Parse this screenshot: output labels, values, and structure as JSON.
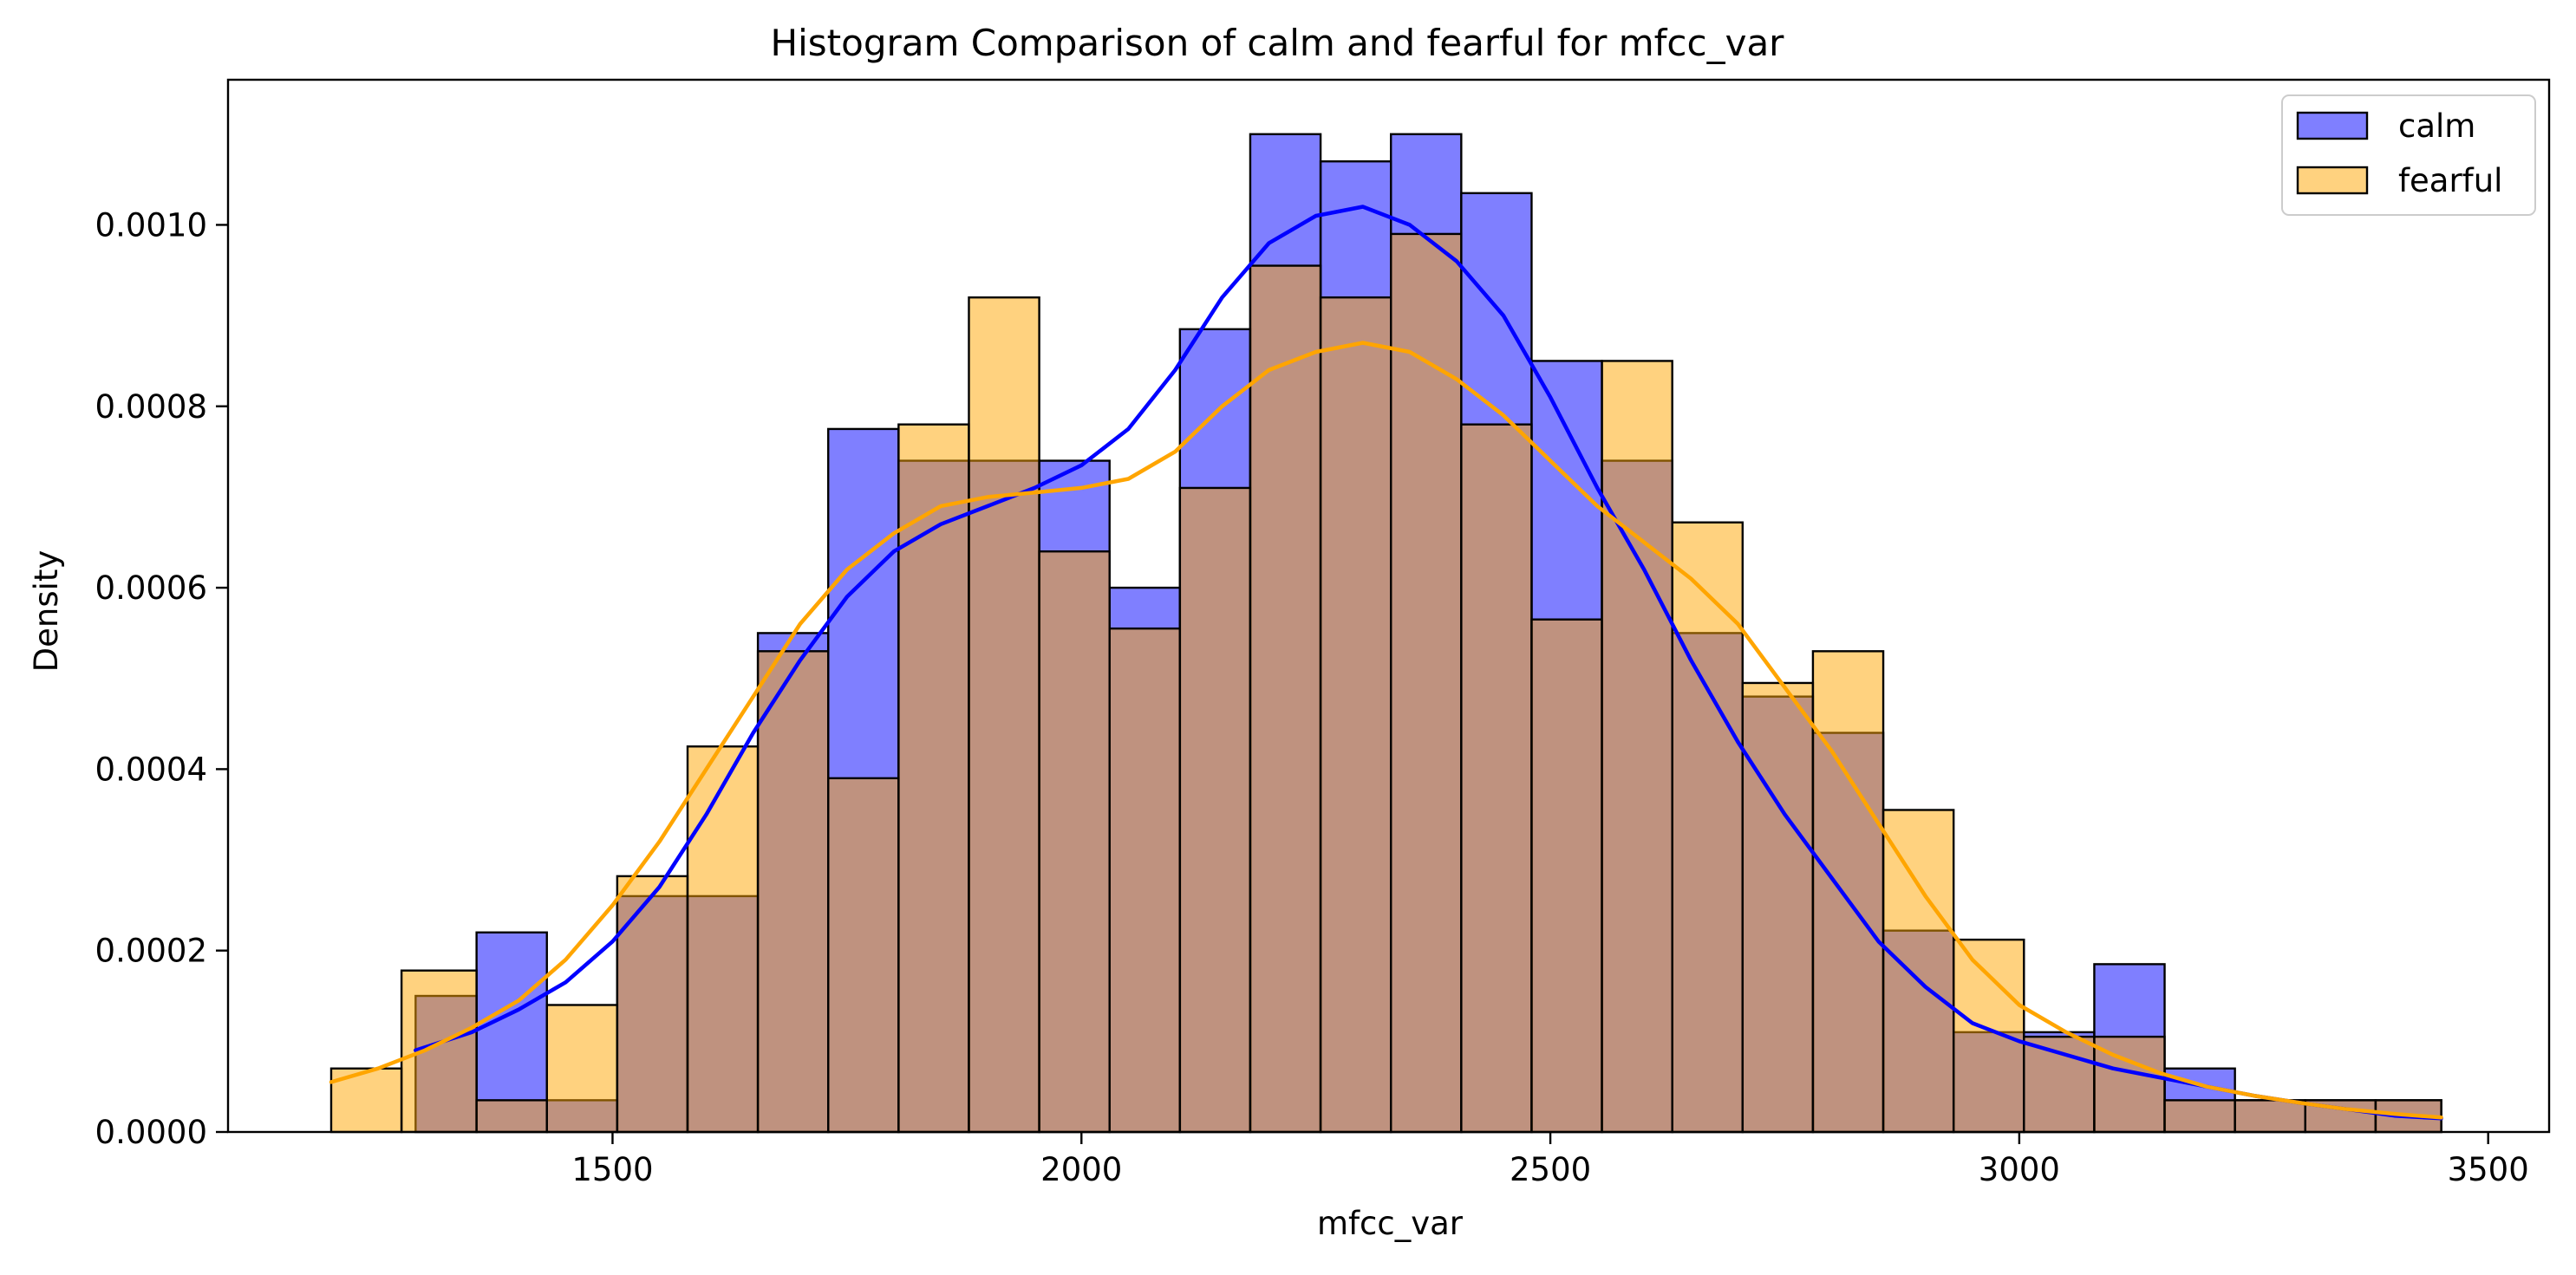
{
  "chart_data": {
    "type": "histogram",
    "title": "Histogram Comparison of calm and fearful for mfcc_var",
    "xlabel": "mfcc_var",
    "ylabel": "Density",
    "xlim": [
      1090,
      3565
    ],
    "ylim": [
      0,
      0.00116
    ],
    "xticks": [
      1500,
      2000,
      2500,
      3000,
      3500
    ],
    "yticks": [
      0.0,
      0.0002,
      0.0004,
      0.0006,
      0.0008,
      0.001
    ],
    "ytick_labels": [
      "0.0000",
      "0.0002",
      "0.0004",
      "0.0006",
      "0.0008",
      "0.0010"
    ],
    "bin_width": 75,
    "grid": false,
    "legend_position": "top-right",
    "series": [
      {
        "name": "calm",
        "fill": "#0000FF",
        "fill_opacity": 0.5,
        "kde_color": "#0000FF",
        "bin_starts": [
          1290,
          1355,
          1430,
          1505,
          1580,
          1655,
          1730,
          1805,
          1880,
          1955,
          2030,
          2105,
          2180,
          2255,
          2330,
          2405,
          2480,
          2555,
          2630,
          2705,
          2780,
          2855,
          2930,
          3005,
          3080,
          3155,
          3230,
          3305,
          3380
        ],
        "bin_ends": [
          1355,
          1430,
          1505,
          1580,
          1655,
          1730,
          1805,
          1880,
          1955,
          2030,
          2105,
          2180,
          2255,
          2330,
          2405,
          2480,
          2555,
          2630,
          2705,
          2780,
          2855,
          2930,
          3005,
          3080,
          3155,
          3230,
          3305,
          3380,
          3450
        ],
        "values": [
          0.00015,
          0.00022,
          3.5e-05,
          0.00026,
          0.00026,
          0.00055,
          0.000775,
          0.00074,
          0.00074,
          0.00074,
          0.0006,
          0.000885,
          0.0011,
          0.00107,
          0.0011,
          0.001035,
          0.00085,
          0.00074,
          0.00055,
          0.00048,
          0.00044,
          0.000222,
          0.00011,
          0.00011,
          0.000185,
          7e-05,
          3.5e-05,
          3.5e-05,
          3.5e-05
        ],
        "kde_x": [
          1290,
          1350,
          1400,
          1450,
          1500,
          1550,
          1600,
          1650,
          1700,
          1750,
          1800,
          1850,
          1900,
          1950,
          2000,
          2050,
          2100,
          2150,
          2200,
          2250,
          2300,
          2350,
          2400,
          2450,
          2500,
          2550,
          2600,
          2650,
          2700,
          2750,
          2800,
          2850,
          2900,
          2950,
          3000,
          3050,
          3100,
          3150,
          3200,
          3250,
          3300,
          3350,
          3400,
          3450
        ],
        "kde_y": [
          9e-05,
          0.00011,
          0.000135,
          0.000165,
          0.00021,
          0.00027,
          0.00035,
          0.00044,
          0.00052,
          0.00059,
          0.00064,
          0.00067,
          0.00069,
          0.00071,
          0.000735,
          0.000775,
          0.00084,
          0.00092,
          0.00098,
          0.00101,
          0.00102,
          0.001,
          0.00096,
          0.0009,
          0.00081,
          0.00071,
          0.00062,
          0.00052,
          0.00043,
          0.00035,
          0.00028,
          0.00021,
          0.00016,
          0.00012,
          0.0001,
          8.5e-05,
          7e-05,
          6e-05,
          5e-05,
          4e-05,
          3.2e-05,
          2.5e-05,
          1.8e-05,
          1.5e-05
        ]
      },
      {
        "name": "fearful",
        "fill": "#FFA500",
        "fill_opacity": 0.5,
        "kde_color": "#FFA500",
        "bin_starts": [
          1200,
          1275,
          1355,
          1430,
          1505,
          1580,
          1655,
          1730,
          1805,
          1880,
          1955,
          2030,
          2105,
          2180,
          2255,
          2330,
          2405,
          2480,
          2555,
          2630,
          2705,
          2780,
          2855,
          2930,
          3005,
          3080,
          3155,
          3230,
          3305,
          3380
        ],
        "bin_ends": [
          1275,
          1355,
          1430,
          1505,
          1580,
          1655,
          1730,
          1805,
          1880,
          1955,
          2030,
          2105,
          2180,
          2255,
          2330,
          2405,
          2480,
          2555,
          2630,
          2705,
          2780,
          2855,
          2930,
          3005,
          3080,
          3155,
          3230,
          3305,
          3380,
          3450
        ],
        "values": [
          7e-05,
          0.000178,
          3.5e-05,
          0.00014,
          0.000282,
          0.000425,
          0.00053,
          0.00039,
          0.00078,
          0.00092,
          0.00064,
          0.000555,
          0.00071,
          0.000955,
          0.00092,
          0.00099,
          0.00078,
          0.000565,
          0.00085,
          0.000672,
          0.000495,
          0.00053,
          0.000355,
          0.000212,
          0.000105,
          0.000105,
          3.5e-05,
          3.5e-05,
          3.5e-05,
          3.5e-05
        ],
        "kde_x": [
          1200,
          1250,
          1300,
          1350,
          1400,
          1450,
          1500,
          1550,
          1600,
          1650,
          1700,
          1750,
          1800,
          1850,
          1900,
          1950,
          2000,
          2050,
          2100,
          2150,
          2200,
          2250,
          2300,
          2350,
          2400,
          2450,
          2500,
          2550,
          2600,
          2650,
          2700,
          2750,
          2800,
          2850,
          2900,
          2950,
          3000,
          3050,
          3100,
          3150,
          3200,
          3250,
          3300,
          3350,
          3400,
          3450
        ],
        "kde_y": [
          5.5e-05,
          7e-05,
          9e-05,
          0.000115,
          0.000145,
          0.00019,
          0.00025,
          0.00032,
          0.0004,
          0.00048,
          0.00056,
          0.00062,
          0.00066,
          0.00069,
          0.0007,
          0.000705,
          0.00071,
          0.00072,
          0.00075,
          0.0008,
          0.00084,
          0.00086,
          0.00087,
          0.00086,
          0.00083,
          0.00079,
          0.00074,
          0.00069,
          0.00065,
          0.00061,
          0.00056,
          0.00049,
          0.00042,
          0.00034,
          0.00026,
          0.00019,
          0.00014,
          0.00011,
          8.5e-05,
          6.5e-05,
          5e-05,
          4e-05,
          3.2e-05,
          2.5e-05,
          2e-05,
          1.6e-05
        ]
      }
    ]
  }
}
